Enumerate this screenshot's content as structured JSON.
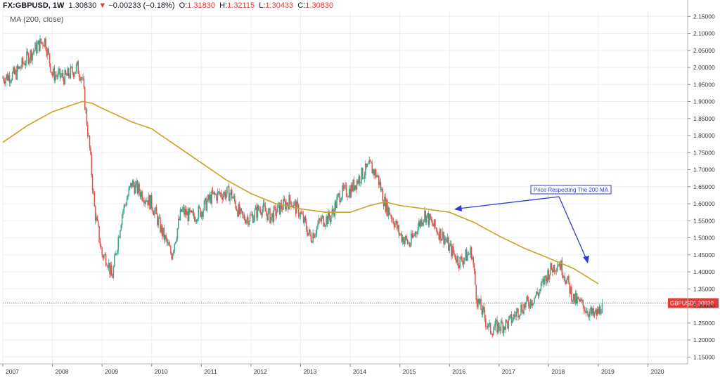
{
  "header": {
    "symbol": "FX:GBPUSD, 1W",
    "last": "1.30830",
    "arrow": "▼",
    "change": "−0.00233 (−0.18%)",
    "o_label": "O:",
    "o_value": "1.31830",
    "h_label": "H:",
    "h_value": "1.32115",
    "l_label": "L:",
    "l_value": "1.30433",
    "c_label": "C:",
    "c_value": "1.30830"
  },
  "indicator_label": "MA (200, close)",
  "annotation_text": "Price Respecting The 200 MA",
  "price_tag": {
    "symbol": "GBPUSD",
    "value": "1.30830"
  },
  "colors": {
    "up": "#3aa58a",
    "down": "#e0534b",
    "ma": "#c9a227",
    "annotation": "#2f3bd1",
    "price_line": "#e53935",
    "grid": "#edeef2",
    "axis_text": "#333333"
  },
  "chart_data": {
    "type": "line",
    "title": "",
    "xlabel": "",
    "ylabel": "",
    "ylim": [
      1.13,
      2.165
    ],
    "xlim": [
      2007.0,
      2020.8
    ],
    "x_ticks": [
      "2007",
      "2008",
      "2009",
      "2010",
      "2011",
      "2012",
      "2013",
      "2014",
      "2015",
      "2016",
      "2017",
      "2018",
      "2019",
      "2020"
    ],
    "y_ticks": [
      "2.15000",
      "2.10000",
      "2.05000",
      "2.00000",
      "1.95000",
      "1.90000",
      "1.85000",
      "1.80000",
      "1.75000",
      "1.70000",
      "1.65000",
      "1.60000",
      "1.55000",
      "1.50000",
      "1.45000",
      "1.40000",
      "1.35000",
      "1.30000",
      "1.25000",
      "1.20000",
      "1.15000"
    ],
    "grid": true,
    "current_price": 1.3083,
    "series": [
      {
        "type": "candlestick",
        "x": [
          2007.0,
          2007.25,
          2007.5,
          2007.75,
          2007.85,
          2008.0,
          2008.25,
          2008.5,
          2008.6,
          2008.75,
          2008.85,
          2009.0,
          2009.1,
          2009.2,
          2009.4,
          2009.6,
          2009.8,
          2010.0,
          2010.2,
          2010.4,
          2010.6,
          2010.8,
          2011.0,
          2011.2,
          2011.4,
          2011.6,
          2011.8,
          2012.0,
          2012.2,
          2012.4,
          2012.6,
          2012.8,
          2013.0,
          2013.2,
          2013.4,
          2013.6,
          2013.8,
          2014.0,
          2014.2,
          2014.4,
          2014.55,
          2014.7,
          2014.85,
          2015.0,
          2015.2,
          2015.35,
          2015.5,
          2015.7,
          2015.9,
          2016.0,
          2016.2,
          2016.45,
          2016.55,
          2016.7,
          2016.8,
          2017.0,
          2017.2,
          2017.4,
          2017.6,
          2017.8,
          2018.0,
          2018.2,
          2018.3,
          2018.5,
          2018.7,
          2018.9,
          2019.0,
          2019.08
        ],
        "close": [
          1.97,
          1.98,
          2.03,
          2.07,
          2.08,
          1.98,
          1.97,
          2.0,
          1.97,
          1.76,
          1.58,
          1.45,
          1.44,
          1.38,
          1.57,
          1.66,
          1.63,
          1.6,
          1.52,
          1.45,
          1.58,
          1.56,
          1.58,
          1.62,
          1.63,
          1.63,
          1.56,
          1.56,
          1.59,
          1.56,
          1.59,
          1.61,
          1.57,
          1.5,
          1.55,
          1.56,
          1.63,
          1.64,
          1.68,
          1.71,
          1.68,
          1.6,
          1.56,
          1.51,
          1.48,
          1.53,
          1.57,
          1.53,
          1.5,
          1.47,
          1.43,
          1.46,
          1.32,
          1.27,
          1.23,
          1.24,
          1.25,
          1.29,
          1.31,
          1.34,
          1.4,
          1.43,
          1.4,
          1.32,
          1.3,
          1.27,
          1.28,
          1.3083
        ]
      },
      {
        "name": "MA (200, close)",
        "type": "line",
        "x": [
          2007.0,
          2007.5,
          2008.0,
          2008.4,
          2008.6,
          2008.8,
          2009.0,
          2009.3,
          2009.6,
          2010.0,
          2010.5,
          2011.0,
          2011.5,
          2012.0,
          2012.5,
          2013.0,
          2013.5,
          2014.0,
          2014.4,
          2014.7,
          2015.0,
          2015.5,
          2016.0,
          2016.5,
          2017.0,
          2017.5,
          2018.0,
          2018.5,
          2019.0
        ],
        "values": [
          1.78,
          1.83,
          1.87,
          1.89,
          1.9,
          1.895,
          1.88,
          1.86,
          1.84,
          1.82,
          1.77,
          1.72,
          1.67,
          1.63,
          1.6,
          1.585,
          1.575,
          1.575,
          1.595,
          1.605,
          1.595,
          1.585,
          1.575,
          1.545,
          1.505,
          1.47,
          1.44,
          1.41,
          1.365
        ]
      }
    ]
  }
}
